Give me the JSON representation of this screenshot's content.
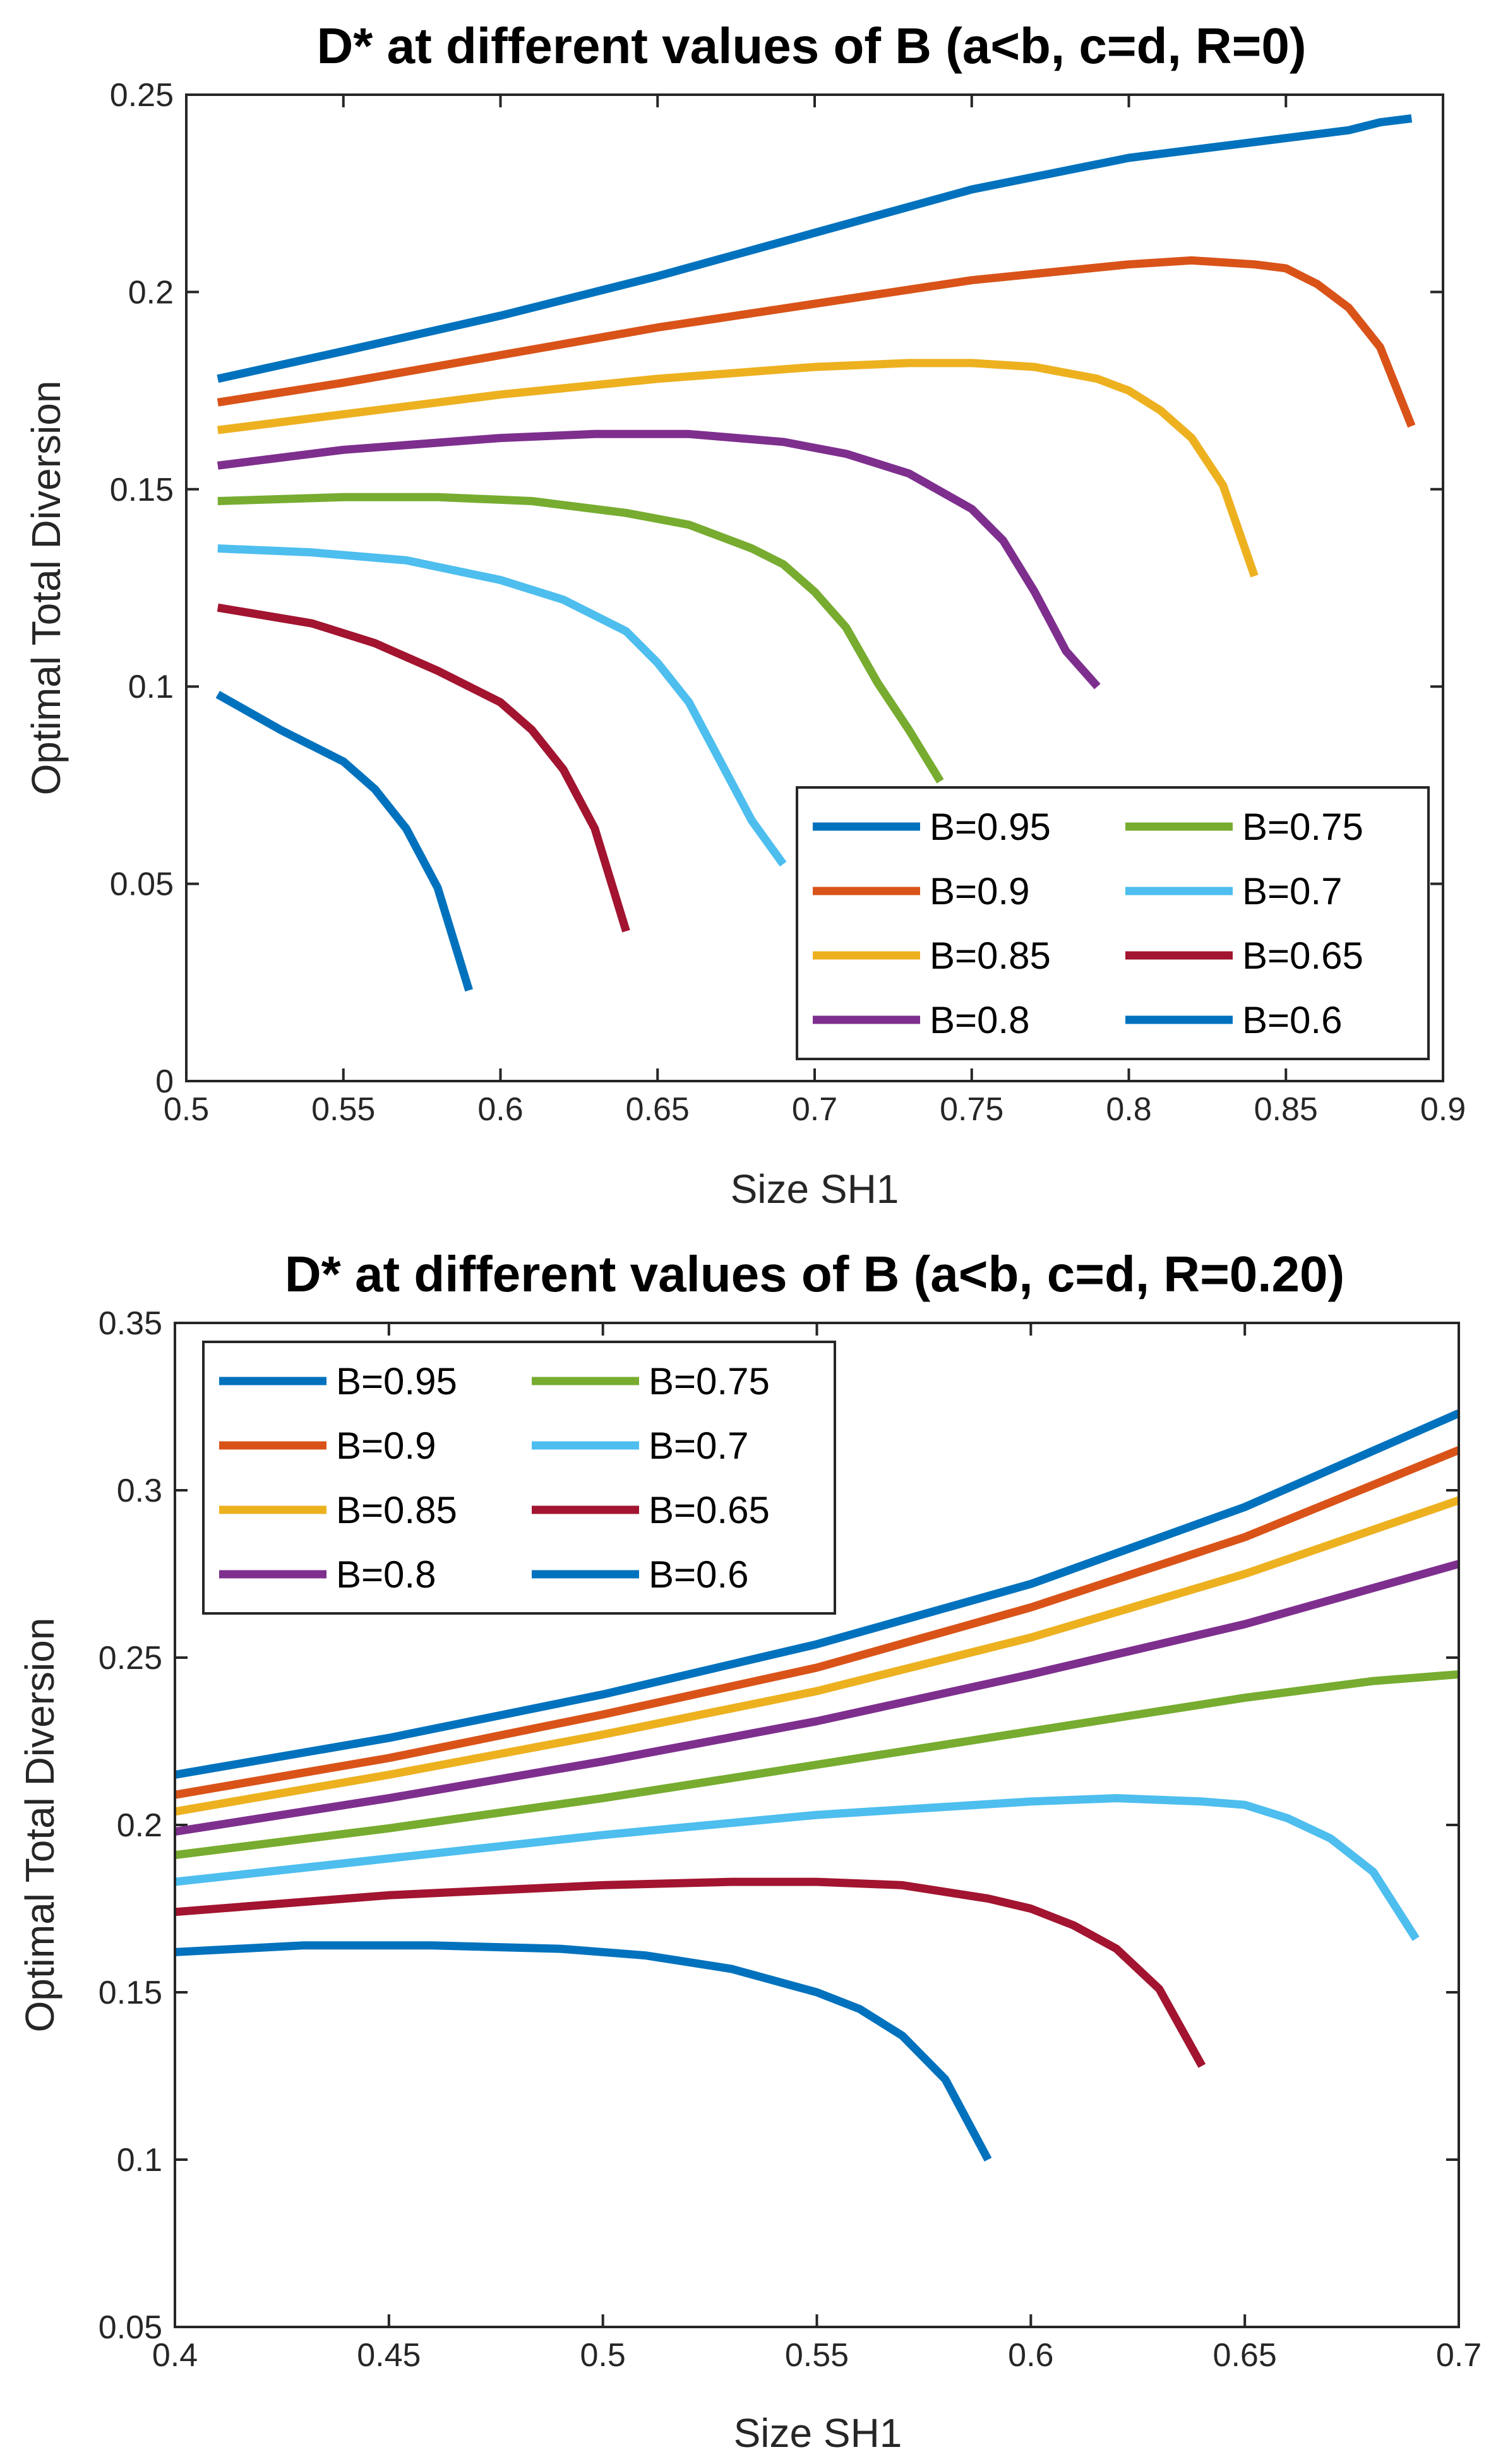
{
  "chart_data": [
    {
      "type": "line",
      "title": "D* at different values of B (a<b, c=d, R=0)",
      "xlabel": "Size SH1",
      "ylabel": "Optimal Total Diversion",
      "xlim": [
        0.5,
        0.9
      ],
      "ylim": [
        0,
        0.25
      ],
      "xticks": [
        0.5,
        0.55,
        0.6,
        0.65,
        0.7,
        0.75,
        0.8,
        0.85,
        0.9
      ],
      "xticklabels": [
        "0.5",
        "0.55",
        "0.6",
        "0.65",
        "0.7",
        "0.75",
        "0.8",
        "0.85",
        "0.9"
      ],
      "yticks": [
        0,
        0.05,
        0.1,
        0.15,
        0.2,
        0.25
      ],
      "yticklabels": [
        "0",
        "0.05",
        "0.1",
        "0.15",
        "0.2",
        "0.25"
      ],
      "legend": {
        "position": "bottom-right",
        "columns": 2
      },
      "series": [
        {
          "name": "B=0.95",
          "color": "#0072BD",
          "x": [
            0.51,
            0.55,
            0.6,
            0.65,
            0.7,
            0.75,
            0.8,
            0.85,
            0.87,
            0.88,
            0.89
          ],
          "y": [
            0.178,
            0.185,
            0.194,
            0.204,
            0.215,
            0.226,
            0.234,
            0.239,
            0.241,
            0.243,
            0.244
          ]
        },
        {
          "name": "B=0.9",
          "color": "#D95319",
          "x": [
            0.51,
            0.55,
            0.6,
            0.65,
            0.7,
            0.75,
            0.8,
            0.82,
            0.84,
            0.85,
            0.86,
            0.87,
            0.88,
            0.89
          ],
          "y": [
            0.172,
            0.177,
            0.184,
            0.191,
            0.197,
            0.203,
            0.207,
            0.208,
            0.207,
            0.206,
            0.202,
            0.196,
            0.186,
            0.166
          ]
        },
        {
          "name": "B=0.85",
          "color": "#EDB120",
          "x": [
            0.51,
            0.55,
            0.6,
            0.65,
            0.7,
            0.73,
            0.75,
            0.77,
            0.79,
            0.8,
            0.81,
            0.82,
            0.83,
            0.84
          ],
          "y": [
            0.165,
            0.169,
            0.174,
            0.178,
            0.181,
            0.182,
            0.182,
            0.181,
            0.178,
            0.175,
            0.17,
            0.163,
            0.151,
            0.128
          ]
        },
        {
          "name": "B=0.8",
          "color": "#7E2F8E",
          "x": [
            0.51,
            0.55,
            0.6,
            0.63,
            0.66,
            0.69,
            0.71,
            0.73,
            0.75,
            0.76,
            0.77,
            0.78,
            0.79
          ],
          "y": [
            0.156,
            0.16,
            0.163,
            0.164,
            0.164,
            0.162,
            0.159,
            0.154,
            0.145,
            0.137,
            0.124,
            0.109,
            0.1
          ]
        },
        {
          "name": "B=0.75",
          "color": "#77AC30",
          "x": [
            0.51,
            0.55,
            0.58,
            0.61,
            0.64,
            0.66,
            0.68,
            0.69,
            0.7,
            0.71,
            0.72,
            0.73,
            0.74
          ],
          "y": [
            0.147,
            0.148,
            0.148,
            0.147,
            0.144,
            0.141,
            0.135,
            0.131,
            0.124,
            0.115,
            0.101,
            0.089,
            0.076
          ]
        },
        {
          "name": "B=0.7",
          "color": "#4DBEEE",
          "x": [
            0.51,
            0.54,
            0.57,
            0.6,
            0.62,
            0.64,
            0.65,
            0.66,
            0.67,
            0.68,
            0.69
          ],
          "y": [
            0.135,
            0.134,
            0.132,
            0.127,
            0.122,
            0.114,
            0.106,
            0.096,
            0.081,
            0.066,
            0.055
          ]
        },
        {
          "name": "B=0.65",
          "color": "#A2142F",
          "x": [
            0.51,
            0.54,
            0.56,
            0.58,
            0.6,
            0.61,
            0.62,
            0.63,
            0.64
          ],
          "y": [
            0.12,
            0.116,
            0.111,
            0.104,
            0.096,
            0.089,
            0.079,
            0.064,
            0.038
          ]
        },
        {
          "name": "B=0.6",
          "color": "#0072BD",
          "x": [
            0.51,
            0.53,
            0.55,
            0.56,
            0.57,
            0.58,
            0.59
          ],
          "y": [
            0.098,
            0.089,
            0.081,
            0.074,
            0.064,
            0.049,
            0.023
          ]
        }
      ]
    },
    {
      "type": "line",
      "title": "D* at different values of B (a<b, c=d, R=0.20)",
      "xlabel": "Size SH1",
      "ylabel": "Optimal Total Diversion",
      "xlim": [
        0.4,
        0.7
      ],
      "ylim": [
        0.05,
        0.35
      ],
      "xticks": [
        0.4,
        0.45,
        0.5,
        0.55,
        0.6,
        0.65,
        0.7
      ],
      "xticklabels": [
        "0.4",
        "0.45",
        "0.5",
        "0.55",
        "0.6",
        "0.65",
        "0.7"
      ],
      "yticks": [
        0.05,
        0.1,
        0.15,
        0.2,
        0.25,
        0.3,
        0.35
      ],
      "yticklabels": [
        "0.05",
        "0.1",
        "0.15",
        "0.2",
        "0.25",
        "0.3",
        "0.35"
      ],
      "legend": {
        "position": "top-left",
        "columns": 2
      },
      "series": [
        {
          "name": "B=0.95",
          "color": "#0072BD",
          "x": [
            0.4,
            0.45,
            0.5,
            0.55,
            0.6,
            0.65,
            0.7
          ],
          "y": [
            0.215,
            0.226,
            0.239,
            0.254,
            0.272,
            0.295,
            0.323
          ]
        },
        {
          "name": "B=0.9",
          "color": "#D95319",
          "x": [
            0.4,
            0.45,
            0.5,
            0.55,
            0.6,
            0.65,
            0.7
          ],
          "y": [
            0.209,
            0.22,
            0.233,
            0.247,
            0.265,
            0.286,
            0.312
          ]
        },
        {
          "name": "B=0.85",
          "color": "#EDB120",
          "x": [
            0.4,
            0.45,
            0.5,
            0.55,
            0.6,
            0.65,
            0.7
          ],
          "y": [
            0.204,
            0.215,
            0.227,
            0.24,
            0.256,
            0.275,
            0.297
          ]
        },
        {
          "name": "B=0.8",
          "color": "#7E2F8E",
          "x": [
            0.4,
            0.45,
            0.5,
            0.55,
            0.6,
            0.65,
            0.7
          ],
          "y": [
            0.198,
            0.208,
            0.219,
            0.231,
            0.245,
            0.26,
            0.278
          ]
        },
        {
          "name": "B=0.75",
          "color": "#77AC30",
          "x": [
            0.4,
            0.45,
            0.5,
            0.55,
            0.6,
            0.65,
            0.68,
            0.7
          ],
          "y": [
            0.191,
            0.199,
            0.208,
            0.218,
            0.228,
            0.238,
            0.243,
            0.245
          ]
        },
        {
          "name": "B=0.7",
          "color": "#4DBEEE",
          "x": [
            0.4,
            0.45,
            0.5,
            0.55,
            0.6,
            0.62,
            0.64,
            0.65,
            0.66,
            0.67,
            0.68,
            0.69
          ],
          "y": [
            0.183,
            0.19,
            0.197,
            0.203,
            0.207,
            0.208,
            0.207,
            0.206,
            0.202,
            0.196,
            0.186,
            0.166
          ]
        },
        {
          "name": "B=0.65",
          "color": "#A2142F",
          "x": [
            0.4,
            0.45,
            0.5,
            0.53,
            0.55,
            0.57,
            0.59,
            0.6,
            0.61,
            0.62,
            0.63,
            0.64
          ],
          "y": [
            0.174,
            0.179,
            0.182,
            0.183,
            0.183,
            0.182,
            0.178,
            0.175,
            0.17,
            0.163,
            0.151,
            0.128
          ]
        },
        {
          "name": "B=0.6",
          "color": "#0072BD",
          "x": [
            0.4,
            0.43,
            0.46,
            0.49,
            0.51,
            0.53,
            0.55,
            0.56,
            0.57,
            0.58,
            0.59
          ],
          "y": [
            0.162,
            0.164,
            0.164,
            0.163,
            0.161,
            0.157,
            0.15,
            0.145,
            0.137,
            0.124,
            0.1
          ]
        }
      ]
    }
  ]
}
